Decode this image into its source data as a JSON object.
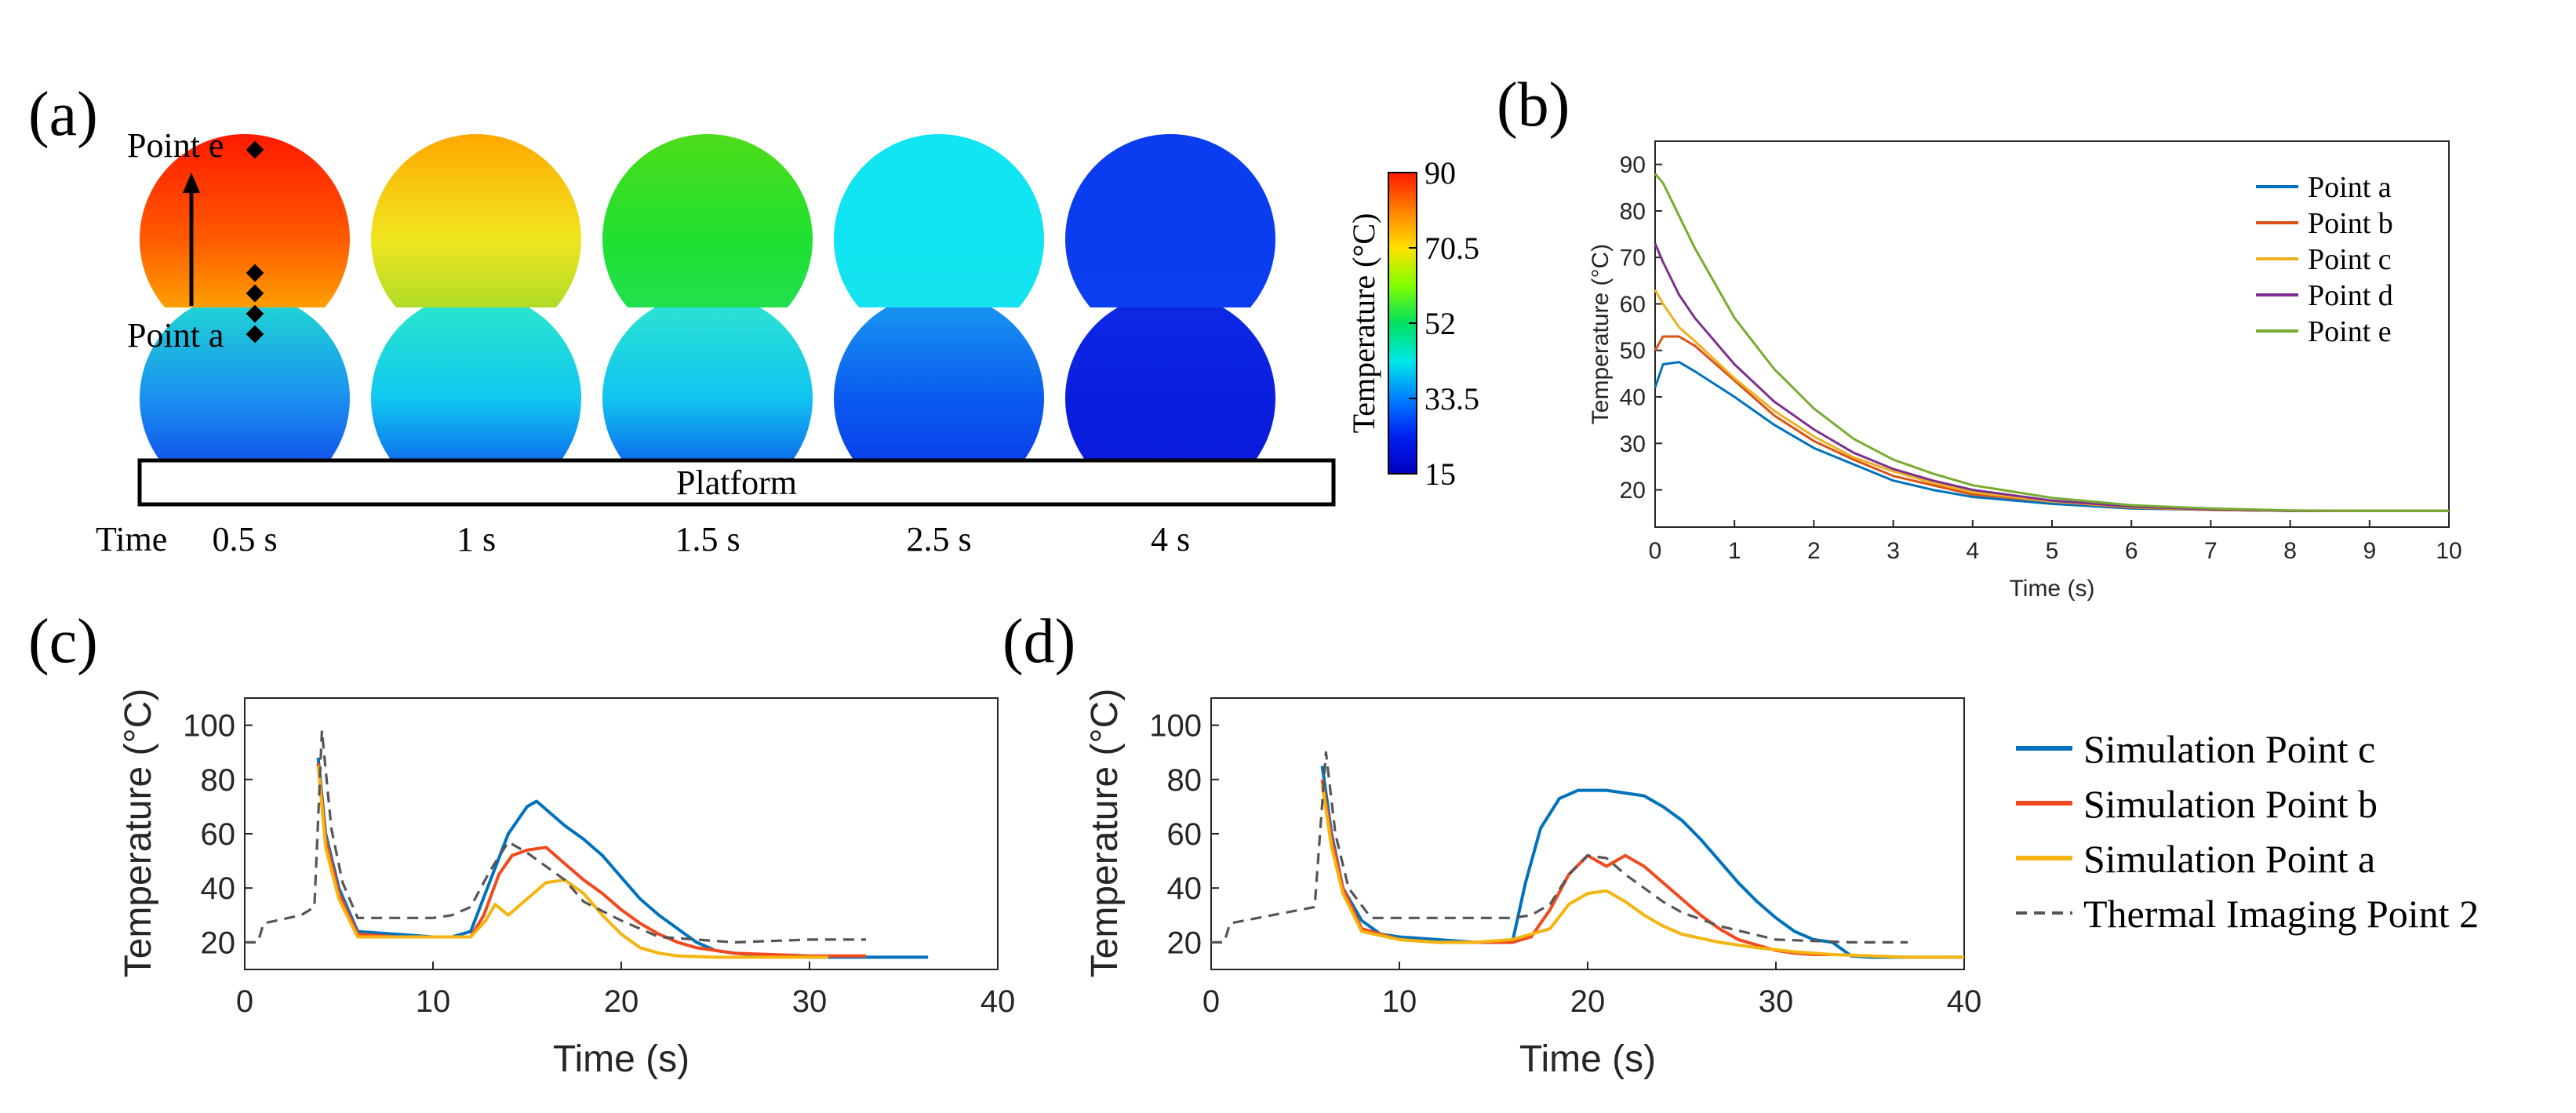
{
  "panels": {
    "a": {
      "label": "(a)",
      "point_top_label": "Point e",
      "point_bottom_label": "Point a",
      "platform_label": "Platform",
      "time_label": "Time",
      "times": [
        "0.5 s",
        "1 s",
        "1.5 s",
        "2.5 s",
        "4 s"
      ],
      "top_sphere_colors": [
        [
          "#ff1a00",
          "#ff5a00",
          "#ffc400"
        ],
        [
          "#ffa800",
          "#f0e620",
          "#8ed62a"
        ],
        [
          "#4edc1a",
          "#20e030",
          "#22e060"
        ],
        [
          "#12e4f2",
          "#10e4f0",
          "#18e2f0"
        ],
        [
          "#0a3cf0",
          "#0a3cf0",
          "#0c40f0"
        ]
      ],
      "bottom_sphere_colors": [
        [
          "#20dcd0",
          "#1a90f0",
          "#0a30e8"
        ],
        [
          "#2ee8c8",
          "#10c8f0",
          "#0a36ea"
        ],
        [
          "#2ee6d0",
          "#10c4f0",
          "#0a34ea"
        ],
        [
          "#1a9cf0",
          "#0a5af0",
          "#0830e6"
        ],
        [
          "#0c2ae4",
          "#0a1ee0",
          "#0a18d8"
        ]
      ],
      "colorbar": {
        "title": "Temperature (°C)",
        "ticks": [
          "90",
          "70.5",
          "52",
          "33.5",
          "15"
        ],
        "colors": [
          "#ff1800",
          "#ff8000",
          "#ffe000",
          "#80ff00",
          "#00e060",
          "#00e8e8",
          "#0080ff",
          "#0020f0",
          "#0000c0"
        ]
      }
    },
    "b": {
      "label": "(b)"
    },
    "c": {
      "label": "(c)"
    },
    "d": {
      "label": "(d)"
    }
  },
  "shared_legend": [
    {
      "name": "Simulation Point c",
      "color": "#0072bd",
      "dash": false
    },
    {
      "name": "Simulation Point b",
      "color": "#f24a1e",
      "dash": false
    },
    {
      "name": "Simulation Point a",
      "color": "#f5b40f",
      "dash": false
    },
    {
      "name": "Thermal Imaging Point 2",
      "color": "#555555",
      "dash": true
    }
  ],
  "chart_data": [
    {
      "panel": "b",
      "type": "line",
      "title": "",
      "xlabel": "Time (s)",
      "ylabel": "Temperature (°C)",
      "xlim": [
        0,
        10
      ],
      "ylim": [
        12,
        95
      ],
      "xticks": [
        "0",
        "1",
        "2",
        "3",
        "4",
        "5",
        "6",
        "7",
        "8",
        "9",
        "10"
      ],
      "yticks": [
        "20",
        "30",
        "40",
        "50",
        "60",
        "70",
        "80",
        "90"
      ],
      "grid": false,
      "legend": "top-right",
      "series": [
        {
          "name": "Point a",
          "color": "#0072bd",
          "x": [
            0,
            0.1,
            0.3,
            0.5,
            1,
            1.5,
            2,
            2.5,
            3,
            3.5,
            4,
            5,
            6,
            7,
            8,
            9,
            10
          ],
          "y": [
            42,
            47,
            47.5,
            45.5,
            40,
            34,
            29,
            25.5,
            22,
            20,
            18.5,
            17,
            16,
            15.7,
            15.5,
            15.5,
            15.5
          ]
        },
        {
          "name": "Point b",
          "color": "#d95319",
          "x": [
            0,
            0.1,
            0.3,
            0.5,
            1,
            1.5,
            2,
            2.5,
            3,
            3.5,
            4,
            5,
            6,
            7,
            8,
            9,
            10
          ],
          "y": [
            50,
            53,
            53,
            51,
            43.5,
            36,
            30.5,
            26.5,
            23,
            21,
            19,
            17.5,
            16.2,
            15.7,
            15.5,
            15.5,
            15.5
          ]
        },
        {
          "name": "Point c",
          "color": "#edb120",
          "x": [
            0,
            0.1,
            0.3,
            0.5,
            1,
            1.5,
            2,
            2.5,
            3,
            3.5,
            4,
            5,
            6,
            7,
            8,
            9,
            10
          ],
          "y": [
            63,
            60,
            55,
            52,
            44,
            37,
            31.5,
            27,
            24,
            21.5,
            19.5,
            17.5,
            16.3,
            15.7,
            15.5,
            15.5,
            15.5
          ]
        },
        {
          "name": "Point d",
          "color": "#7e2f8e",
          "x": [
            0,
            0.1,
            0.3,
            0.5,
            1,
            1.5,
            2,
            2.5,
            3,
            3.5,
            4,
            5,
            6,
            7,
            8,
            9,
            10
          ],
          "y": [
            73,
            69,
            62,
            57,
            47,
            39,
            33,
            28,
            24.5,
            22,
            20,
            17.7,
            16.4,
            15.8,
            15.5,
            15.5,
            15.5
          ]
        },
        {
          "name": "Point e",
          "color": "#77ac30",
          "x": [
            0,
            0.1,
            0.3,
            0.5,
            1,
            1.5,
            2,
            2.5,
            3,
            3.5,
            4,
            5,
            6,
            7,
            8,
            9,
            10
          ],
          "y": [
            88,
            86,
            79,
            72,
            57,
            46,
            37.5,
            31,
            26.5,
            23.5,
            21,
            18.3,
            16.7,
            16,
            15.6,
            15.5,
            15.5
          ]
        }
      ]
    },
    {
      "panel": "c",
      "type": "line",
      "title": "",
      "xlabel": "Time (s)",
      "ylabel": "Temperature (°C)",
      "xlim": [
        0,
        40
      ],
      "ylim": [
        10,
        110
      ],
      "xticks": [
        "0",
        "10",
        "20",
        "30",
        "40"
      ],
      "yticks": [
        "20",
        "40",
        "60",
        "80",
        "100"
      ],
      "grid": false,
      "series": [
        {
          "name": "Simulation Point c",
          "color": "#0072bd",
          "x": [
            3.9,
            4.3,
            5,
            6,
            8,
            10,
            11,
            12,
            13,
            14,
            15,
            15.5,
            16,
            17,
            18,
            19,
            20,
            21,
            22,
            23,
            24,
            25,
            26,
            28,
            30,
            32,
            34,
            36.3
          ],
          "y": [
            88,
            60,
            40,
            24,
            23,
            22,
            22,
            24,
            42,
            60,
            70,
            72,
            69,
            63,
            58,
            52,
            44,
            36,
            30,
            25,
            20,
            17,
            16,
            15,
            14.5,
            14.5,
            14.5,
            14.5
          ]
        },
        {
          "name": "Simulation Point b",
          "color": "#f24a1e",
          "x": [
            3.9,
            4.3,
            5,
            6,
            8,
            10,
            11,
            12,
            12.7,
            13.5,
            14.2,
            15,
            16,
            17,
            18,
            19,
            20,
            21,
            22,
            23,
            24,
            26,
            28,
            30,
            33
          ],
          "y": [
            86,
            58,
            38,
            23,
            22,
            22,
            22,
            22,
            30,
            45,
            52,
            54,
            55,
            49,
            43,
            38,
            32,
            27,
            23,
            20,
            18,
            16,
            15.5,
            15,
            15
          ]
        },
        {
          "name": "Simulation Point a",
          "color": "#f5b40f",
          "x": [
            3.9,
            4.3,
            5,
            6,
            8,
            10,
            12,
            12.8,
            13.3,
            14,
            15,
            16,
            17,
            18,
            19,
            20,
            21,
            22,
            23,
            25,
            28,
            31
          ],
          "y": [
            85,
            55,
            36,
            22,
            22,
            22,
            22,
            28,
            34,
            30,
            36,
            42,
            43,
            38,
            30,
            23,
            18,
            16,
            15,
            14.5,
            14.5,
            14.5
          ]
        },
        {
          "name": "Thermal Imaging Point 2",
          "color": "#555555",
          "dash": true,
          "x": [
            0,
            0.7,
            1,
            3,
            3.7,
            4.1,
            4.6,
            5.2,
            6,
            8,
            10,
            11,
            12,
            13,
            14,
            15,
            16,
            17,
            18,
            20,
            22,
            24,
            26,
            30,
            33
          ],
          "y": [
            20,
            20,
            27,
            30,
            33,
            98,
            62,
            42,
            29,
            29,
            29,
            30,
            33,
            46,
            57,
            53,
            48,
            43,
            35,
            28,
            22,
            21,
            20,
            21,
            21
          ]
        }
      ]
    },
    {
      "panel": "d",
      "type": "line",
      "title": "",
      "xlabel": "Time (s)",
      "ylabel": "Temperature (°C)",
      "xlim": [
        0,
        40
      ],
      "ylim": [
        10,
        110
      ],
      "xticks": [
        "0",
        "10",
        "20",
        "30",
        "40"
      ],
      "yticks": [
        "20",
        "40",
        "60",
        "80",
        "100"
      ],
      "grid": false,
      "series": [
        {
          "name": "Simulation Point c",
          "color": "#0072bd",
          "x": [
            5.9,
            6.4,
            7,
            8,
            9,
            10,
            12,
            14,
            15.5,
            16,
            16.7,
            17.5,
            18.5,
            19.5,
            21,
            22,
            23,
            24,
            25,
            26,
            27,
            28,
            29,
            30,
            31,
            32,
            33,
            34,
            35,
            37,
            40
          ],
          "y": [
            85,
            60,
            40,
            28,
            23,
            22,
            21,
            20,
            20,
            20,
            42,
            62,
            73,
            76,
            76,
            75,
            74,
            70,
            65,
            58,
            50,
            42,
            35,
            29,
            24,
            21,
            20,
            15,
            14.5,
            14.5,
            14.5
          ]
        },
        {
          "name": "Simulation Point b",
          "color": "#f24a1e",
          "x": [
            5.9,
            6.4,
            7,
            8,
            10,
            12,
            14,
            16,
            17,
            18,
            19,
            20,
            21,
            22,
            23,
            24,
            25,
            26,
            27,
            28,
            29,
            30,
            31,
            32,
            33
          ],
          "y": [
            80,
            58,
            40,
            25,
            21,
            20,
            20,
            20,
            22,
            32,
            45,
            52,
            48,
            52,
            48,
            42,
            36,
            30,
            25,
            21,
            19,
            17,
            16,
            15.5,
            15.5
          ]
        },
        {
          "name": "Simulation Point a",
          "color": "#f5b40f",
          "x": [
            5.9,
            6.4,
            7,
            8,
            10,
            12,
            14,
            16,
            18,
            19,
            20,
            21,
            22,
            23,
            24,
            25,
            27,
            29,
            31,
            33,
            35,
            37,
            40
          ],
          "y": [
            78,
            55,
            38,
            24,
            21,
            20,
            20,
            21,
            25,
            34,
            38,
            39,
            35,
            30,
            26,
            23,
            20,
            18,
            16.5,
            15.5,
            15,
            14.5,
            14.5
          ]
        },
        {
          "name": "Thermal Imaging Point 2",
          "color": "#555555",
          "dash": true,
          "x": [
            0,
            0.7,
            1,
            4,
            5.5,
            6.1,
            6.6,
            7.3,
            8.5,
            10,
            12,
            14,
            16,
            17,
            18,
            19,
            20,
            21,
            22,
            23,
            24,
            25,
            27,
            30,
            34,
            37
          ],
          "y": [
            20,
            20,
            27,
            31,
            33,
            90,
            60,
            40,
            29,
            29,
            29,
            29,
            29,
            30,
            34,
            45,
            52,
            51,
            45,
            40,
            35,
            31,
            26,
            21,
            20,
            20
          ]
        }
      ]
    }
  ]
}
